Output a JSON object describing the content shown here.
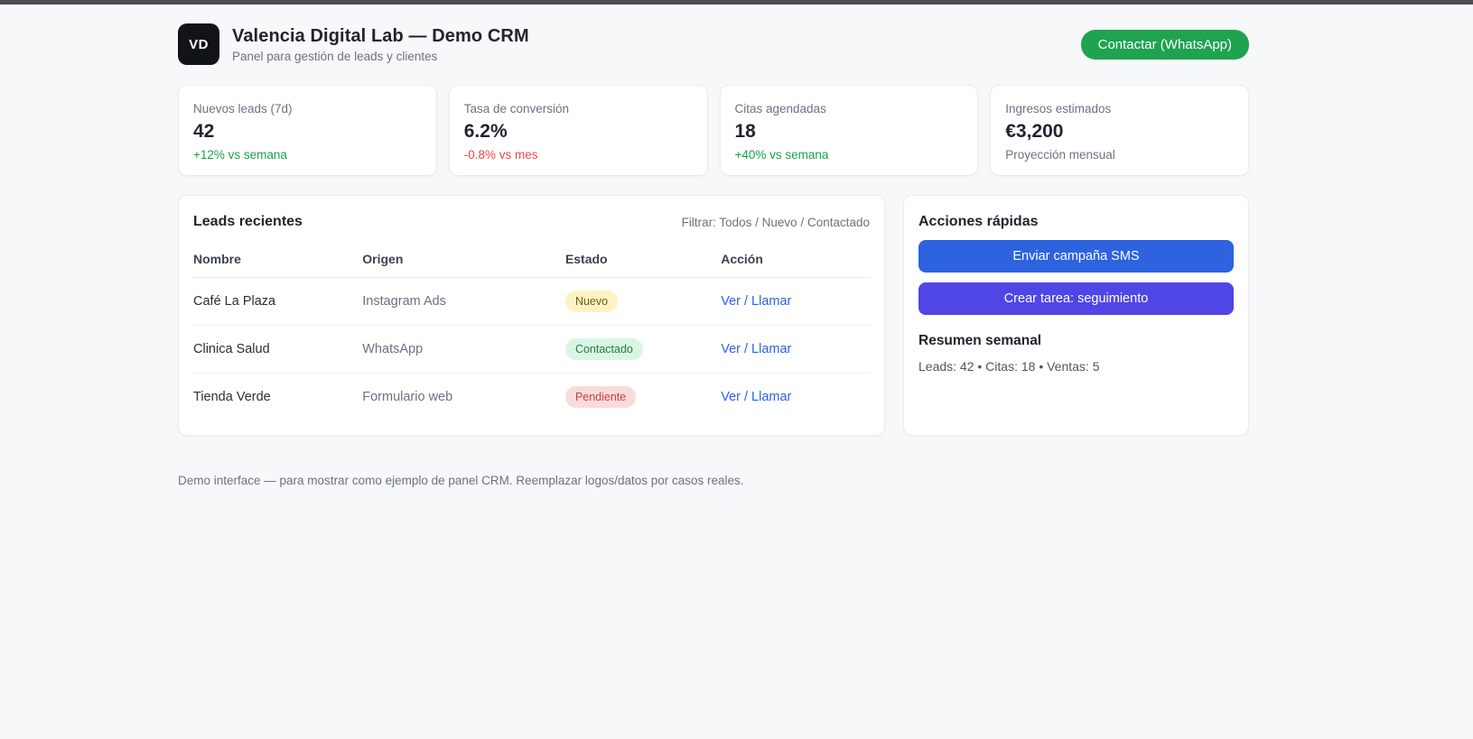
{
  "page": {
    "background": "#f7f8fa",
    "top_strip_color": "#4b4d51"
  },
  "header": {
    "logo_text": "VD",
    "title": "Valencia Digital Lab — Demo CRM",
    "subtitle": "Panel para gestión de leads y clientes",
    "whatsapp_button": {
      "label": "Contactar (WhatsApp)",
      "color": "#1fa34f"
    }
  },
  "stats": [
    {
      "label": "Nuevos leads (7d)",
      "value": "42",
      "delta": "+12% vs semana",
      "delta_color": "#16a34a"
    },
    {
      "label": "Tasa de conversión",
      "value": "6.2%",
      "delta": "-0.8% vs mes",
      "delta_color": "#ef4444"
    },
    {
      "label": "Citas agendadas",
      "value": "18",
      "delta": "+40% vs semana",
      "delta_color": "#16a34a"
    },
    {
      "label": "Ingresos estimados",
      "value": "€3,200",
      "delta": "Proyección mensual",
      "delta_color": "#6b7280"
    }
  ],
  "leads": {
    "title": "Leads recientes",
    "filter_label": "Filtrar: Todos / Nuevo / Contactado",
    "columns": [
      "Nombre",
      "Origen",
      "Estado",
      "Acción"
    ],
    "rows": [
      {
        "name": "Café La Plaza",
        "origin": "Instagram Ads",
        "status": "Nuevo",
        "status_bg": "#fdf3c2",
        "status_fg": "#6e5d1c",
        "action": "Ver / Llamar"
      },
      {
        "name": "Clinica Salud",
        "origin": "WhatsApp",
        "status": "Contactado",
        "status_bg": "#d9f6e5",
        "status_fg": "#257a4a",
        "action": "Ver / Llamar"
      },
      {
        "name": "Tienda Verde",
        "origin": "Formulario web",
        "status": "Pendiente",
        "status_bg": "#fadbdb",
        "status_fg": "#c44441",
        "action": "Ver / Llamar"
      }
    ]
  },
  "actions": {
    "title": "Acciones rápidas",
    "buttons": [
      {
        "label": "Enviar campaña SMS",
        "color": "#2d63df"
      },
      {
        "label": "Crear tarea: seguimiento",
        "color": "#4f46e5"
      }
    ],
    "summary_title": "Resumen semanal",
    "summary_text": "Leads: 42 • Citas: 18 • Ventas: 5"
  },
  "footer": {
    "note": "Demo interface — para mostrar como ejemplo de panel CRM. Reemplazar logos/datos por casos reales."
  }
}
